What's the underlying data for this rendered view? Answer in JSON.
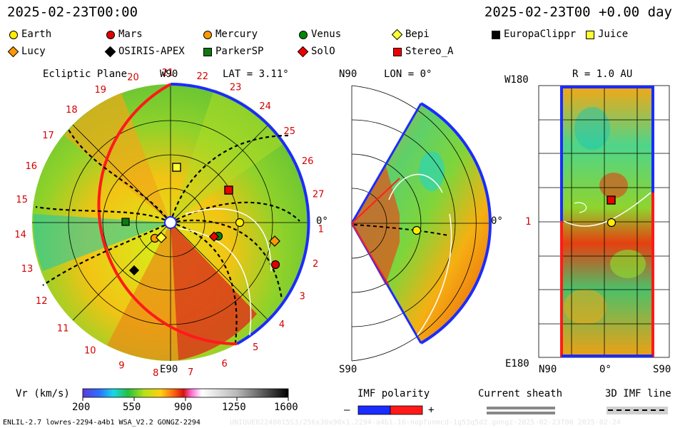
{
  "header": {
    "left_date": "2025-02-23T00:00",
    "right_date": "2025-02-23T00 +0.00 day"
  },
  "legend": [
    {
      "label": "Earth",
      "shape": "circle",
      "color": "#ffee00"
    },
    {
      "label": "Mars",
      "shape": "circle",
      "color": "#e00000"
    },
    {
      "label": "Mercury",
      "shape": "circle",
      "color": "#ff9900"
    },
    {
      "label": "Venus",
      "shape": "circle",
      "color": "#008800"
    },
    {
      "label": "Bepi",
      "shape": "diamond",
      "color": "#ffff33"
    },
    {
      "label": "EuropaClippr",
      "shape": "square",
      "color": "#000000"
    },
    {
      "label": "Juice",
      "shape": "square",
      "color": "#ffff33"
    },
    {
      "label": "Lucy",
      "shape": "diamond",
      "color": "#ff9900"
    },
    {
      "label": "OSIRIS-APEX",
      "shape": "diamond",
      "color": "#000000"
    },
    {
      "label": "ParkerSP",
      "shape": "square",
      "color": "#117711"
    },
    {
      "label": "SolO",
      "shape": "diamond",
      "color": "#ee0000"
    },
    {
      "label": "Stereo_A",
      "shape": "square",
      "color": "#ee0000"
    }
  ],
  "panels": {
    "ecliptic": {
      "title": "Ecliptic Plane",
      "w90": "W90",
      "lat": "LAT = 3.11°",
      "e90": "E90",
      "zero": "0°",
      "carrington_ticks": [
        "1",
        "2",
        "3",
        "4",
        "5",
        "6",
        "7",
        "8",
        "9",
        "10",
        "11",
        "12",
        "13",
        "14",
        "15",
        "16",
        "17",
        "18",
        "19",
        "20",
        "21",
        "22",
        "23",
        "24",
        "25",
        "26",
        "27"
      ]
    },
    "meridional": {
      "n90": "N90",
      "s90": "S90",
      "lon": "LON = 0°",
      "zero": "0°"
    },
    "sphere": {
      "w180": "W180",
      "r": "R = 1.0 AU",
      "e180": "E180",
      "n90": "N90",
      "zero": "0°",
      "s90": "S90",
      "one": "1"
    }
  },
  "colorbar": {
    "label": "Vr (km/s)",
    "ticks": [
      "200",
      "550",
      "900",
      "1250",
      "1600"
    ]
  },
  "imf": {
    "label": "IMF polarity",
    "minus": "–",
    "plus": "+"
  },
  "sheath": {
    "label": "Current sheath"
  },
  "imfline": {
    "label": "3D IMF line"
  },
  "footer": {
    "left": "ENLIL-2.7 lowres-2294-a4b1 WSA_V2.2 GONGZ-2294",
    "ghost": "UNIQUE02240015S3/256x30x90x1.2294-a4b1.16-nopfunmcd-1g53q5d2.gongz-2025-02-23T00 2025-02-24"
  }
}
